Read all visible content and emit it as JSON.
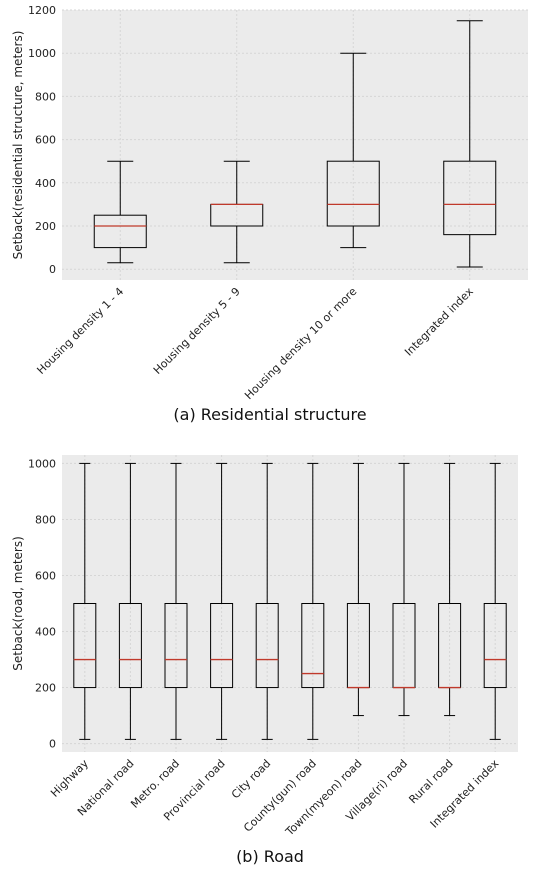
{
  "chart_data": [
    {
      "type": "box",
      "caption": "(a) Residential structure",
      "ylabel": "Setback(residential structure, meters)",
      "ylim": [
        -50,
        1200
      ],
      "yticks": [
        0,
        200,
        400,
        600,
        800,
        1000,
        1200
      ],
      "grid": true,
      "categories": [
        "Housing density 1 - 4",
        "Housing density 5 - 9",
        "Housing density 10 or more",
        "Integrated index"
      ],
      "boxes": [
        {
          "whisker_low": 30,
          "q1": 100,
          "median": 200,
          "q3": 250,
          "whisker_high": 500
        },
        {
          "whisker_low": 30,
          "q1": 200,
          "median": 300,
          "q3": 300,
          "whisker_high": 500
        },
        {
          "whisker_low": 100,
          "q1": 200,
          "median": 300,
          "q3": 500,
          "whisker_high": 1000
        },
        {
          "whisker_low": 10,
          "q1": 160,
          "median": 300,
          "q3": 500,
          "whisker_high": 1150
        }
      ]
    },
    {
      "type": "box",
      "caption": "(b) Road",
      "ylabel": "Setback(road, meters)",
      "ylim": [
        -30,
        1030
      ],
      "yticks": [
        0,
        200,
        400,
        600,
        800,
        1000
      ],
      "grid": true,
      "categories": [
        "Highway",
        "National road",
        "Metro. road",
        "Provincial road",
        "City road",
        "County(gun) road",
        "Town(myeon) road",
        "Village(ri) road",
        "Rural road",
        "Integrated index"
      ],
      "boxes": [
        {
          "whisker_low": 15,
          "q1": 200,
          "median": 300,
          "q3": 500,
          "whisker_high": 1000
        },
        {
          "whisker_low": 15,
          "q1": 200,
          "median": 300,
          "q3": 500,
          "whisker_high": 1000
        },
        {
          "whisker_low": 15,
          "q1": 200,
          "median": 300,
          "q3": 500,
          "whisker_high": 1000
        },
        {
          "whisker_low": 15,
          "q1": 200,
          "median": 300,
          "q3": 500,
          "whisker_high": 1000
        },
        {
          "whisker_low": 15,
          "q1": 200,
          "median": 300,
          "q3": 500,
          "whisker_high": 1000
        },
        {
          "whisker_low": 15,
          "q1": 200,
          "median": 250,
          "q3": 500,
          "whisker_high": 1000
        },
        {
          "whisker_low": 100,
          "q1": 200,
          "median": 200,
          "q3": 500,
          "whisker_high": 1000
        },
        {
          "whisker_low": 100,
          "q1": 200,
          "median": 200,
          "q3": 500,
          "whisker_high": 1000
        },
        {
          "whisker_low": 100,
          "q1": 200,
          "median": 200,
          "q3": 500,
          "whisker_high": 1000
        },
        {
          "whisker_low": 15,
          "q1": 200,
          "median": 300,
          "q3": 500,
          "whisker_high": 1000
        }
      ]
    }
  ],
  "colors": {
    "plot_bg": "#ebebeb",
    "grid": "#d6d6d6",
    "box": "#000000",
    "median": "#c0392b"
  }
}
